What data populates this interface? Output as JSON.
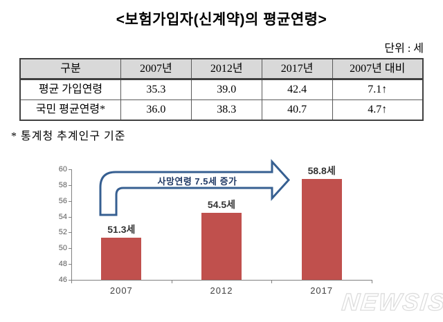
{
  "title": "<보험가입자(신계약)의 평균연령>",
  "unit_label": "단위 : 세",
  "table": {
    "headers": [
      "구분",
      "2007년",
      "2012년",
      "2017년",
      "2007년 대비"
    ],
    "rows": [
      {
        "label": "평균 가입연령",
        "values": [
          "35.3",
          "39.0",
          "42.4",
          "7.1↑"
        ]
      },
      {
        "label": "국민 평균연령*",
        "values": [
          "36.0",
          "38.3",
          "40.7",
          "4.7↑"
        ]
      }
    ]
  },
  "footnote": "* 통계청 추계인구 기준",
  "chart_data": {
    "type": "bar",
    "categories": [
      "2007",
      "2012",
      "2017"
    ],
    "values": [
      51.3,
      54.5,
      58.8
    ],
    "value_labels": [
      "51.3세",
      "54.5세",
      "58.8세"
    ],
    "annotation": "사망연령 7.5세 증가",
    "title": "",
    "xlabel": "",
    "ylabel": "",
    "ylim": [
      46,
      60
    ],
    "yticks": [
      46,
      48,
      50,
      52,
      54,
      56,
      58,
      60
    ],
    "grid": false,
    "legend": false,
    "bar_color": "#c0504d",
    "arrow_color": "#365f91"
  },
  "watermark": "NEWSIS"
}
